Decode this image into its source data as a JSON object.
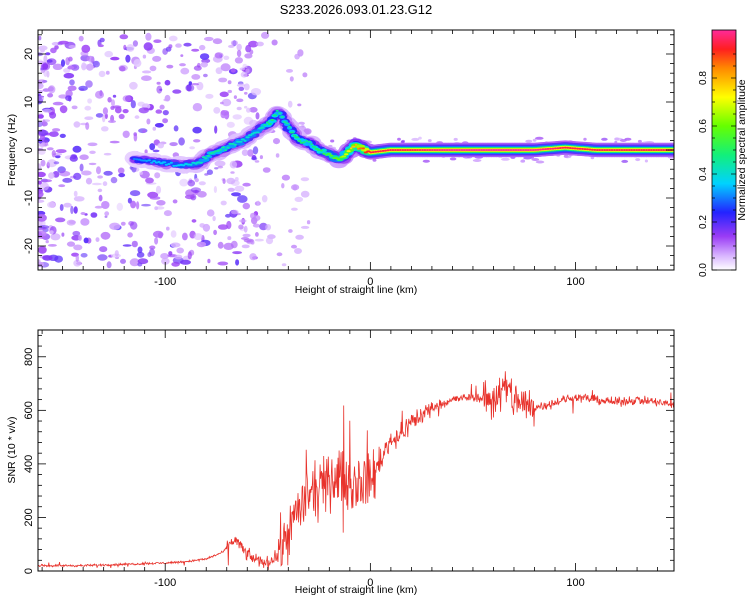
{
  "title": "S233.2026.093.01.23.G12",
  "chart_data": [
    {
      "type": "heatmap",
      "title": "S233.2026.093.01.23.G12",
      "xlabel": "Height of straight line (km)",
      "ylabel": "Frequency (Hz)",
      "xlim": [
        -162,
        148
      ],
      "ylim": [
        -25,
        25
      ],
      "xticks": [
        -100,
        0,
        100
      ],
      "yticks": [
        -20,
        -10,
        0,
        10,
        20
      ],
      "colorbar": {
        "label": "Normalized spectral amplitude",
        "range": [
          0,
          1
        ],
        "ticks": [
          0.0,
          0.2,
          0.4,
          0.6,
          0.8
        ]
      },
      "ridge": {
        "x": [
          -115,
          -105,
          -95,
          -85,
          -78,
          -70,
          -62,
          -55,
          -48,
          -45,
          -40,
          -35,
          -30,
          -25,
          -20,
          -15,
          -10,
          -7,
          -5,
          0,
          10,
          20,
          40,
          60,
          80,
          95,
          110,
          130,
          148
        ],
        "freq": [
          -2,
          -2.5,
          -3,
          -3,
          -1,
          0.5,
          2,
          4,
          6,
          8,
          5,
          2,
          1.5,
          0,
          -1,
          -2,
          0,
          1,
          0.5,
          -0.5,
          0,
          0,
          0,
          0,
          0,
          0.5,
          0,
          0,
          0
        ],
        "amp": [
          0.3,
          0.35,
          0.35,
          0.4,
          0.45,
          0.45,
          0.4,
          0.4,
          0.5,
          0.45,
          0.45,
          0.5,
          0.45,
          0.5,
          0.55,
          0.6,
          0.75,
          0.8,
          0.85,
          0.95,
          0.95,
          0.95,
          1.0,
          1.0,
          1.0,
          0.95,
          0.95,
          0.95,
          0.95
        ]
      }
    },
    {
      "type": "line",
      "xlabel": "Height of straight line (km)",
      "ylabel": "SNR (10 * v/v)",
      "xlim": [
        -162,
        148
      ],
      "ylim": [
        0,
        900
      ],
      "xticks": [
        -100,
        0,
        100
      ],
      "yticks": [
        0,
        200,
        400,
        600,
        800
      ],
      "series": [
        {
          "name": "SNR",
          "color": "#e8332c",
          "x": [
            -162,
            -140,
            -120,
            -100,
            -90,
            -80,
            -72,
            -66,
            -60,
            -55,
            -50,
            -45,
            -40,
            -35,
            -30,
            -25,
            -20,
            -15,
            -10,
            -5,
            0,
            5,
            10,
            15,
            20,
            25,
            30,
            40,
            50,
            60,
            65,
            70,
            75,
            80,
            90,
            100,
            110,
            120,
            130,
            140,
            148
          ],
          "y": [
            20,
            20,
            25,
            30,
            35,
            45,
            70,
            120,
            60,
            40,
            30,
            60,
            150,
            230,
            280,
            300,
            330,
            360,
            320,
            340,
            330,
            420,
            490,
            510,
            560,
            580,
            610,
            640,
            650,
            640,
            680,
            650,
            620,
            610,
            630,
            650,
            640,
            630,
            640,
            630,
            620
          ]
        }
      ]
    }
  ]
}
